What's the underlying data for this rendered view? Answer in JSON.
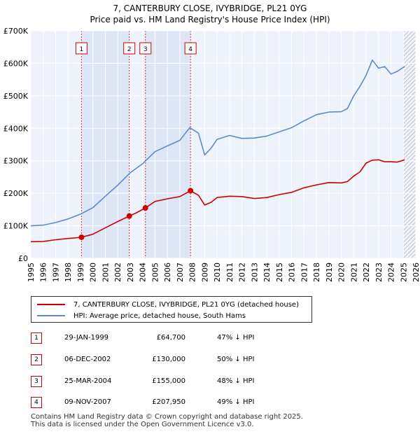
{
  "chart_data": {
    "type": "line",
    "title": "7, CANTERBURY CLOSE, IVYBRIDGE, PL21 0YG",
    "subtitle": "Price paid vs. HM Land Registry's House Price Index (HPI)",
    "xlim": [
      1995,
      2026
    ],
    "ylim": [
      0,
      700000
    ],
    "x_ticks": [
      1995,
      1996,
      1997,
      1998,
      1999,
      2000,
      2001,
      2002,
      2003,
      2004,
      2005,
      2006,
      2007,
      2008,
      2009,
      2010,
      2011,
      2012,
      2013,
      2014,
      2015,
      2016,
      2017,
      2018,
      2019,
      2020,
      2021,
      2022,
      2023,
      2024,
      2025,
      2026
    ],
    "y_ticks": [
      {
        "value": 0,
        "label": "£0"
      },
      {
        "value": 100000,
        "label": "£100K"
      },
      {
        "value": 200000,
        "label": "£200K"
      },
      {
        "value": 300000,
        "label": "£300K"
      },
      {
        "value": 400000,
        "label": "£400K"
      },
      {
        "value": 500000,
        "label": "£500K"
      },
      {
        "value": 600000,
        "label": "£600K"
      },
      {
        "value": 700000,
        "label": "£700K"
      }
    ],
    "grid": true,
    "series": [
      {
        "name": "7, CANTERBURY CLOSE, IVYBRIDGE, PL21 0YG (detached house)",
        "color": "#cc0000",
        "x": [
          1995,
          1996,
          1997,
          1998,
          1999.08,
          2000,
          2001,
          2002,
          2002.93,
          2003.5,
          2004.23,
          2005,
          2006,
          2007,
          2007.86,
          2008.5,
          2009,
          2009.5,
          2010,
          2011,
          2012,
          2013,
          2014,
          2015,
          2016,
          2017,
          2018,
          2019,
          2020,
          2020.5,
          2021,
          2021.5,
          2022,
          2022.5,
          2023,
          2023.5,
          2024,
          2024.5,
          2025.1
        ],
        "y": [
          51000,
          52000,
          57000,
          61000,
          64700,
          74000,
          94000,
          113000,
          130000,
          140000,
          155000,
          175000,
          183000,
          190000,
          207950,
          194000,
          164000,
          172000,
          187000,
          191000,
          190000,
          184000,
          187000,
          196000,
          203000,
          217000,
          226000,
          233000,
          232000,
          236000,
          253000,
          266000,
          293000,
          302000,
          303000,
          297000,
          297000,
          296000,
          303000
        ]
      },
      {
        "name": "HPI: Average price, detached house, South Hams",
        "color": "#5b8cc8",
        "x": [
          1995,
          1996,
          1997,
          1998,
          1999,
          2000,
          2001,
          2002,
          2003,
          2004,
          2005,
          2006,
          2007,
          2007.8,
          2008.5,
          2009,
          2009.5,
          2010,
          2011,
          2012,
          2013,
          2014,
          2015,
          2016,
          2017,
          2018,
          2019,
          2020,
          2020.5,
          2021,
          2021.5,
          2022,
          2022.5,
          2023,
          2023.5,
          2024,
          2024.5,
          2025.1
        ],
        "y": [
          100000,
          102000,
          110000,
          121000,
          136000,
          156000,
          191000,
          225000,
          263000,
          291000,
          328000,
          346000,
          363000,
          402000,
          385000,
          318000,
          338000,
          366000,
          378000,
          369000,
          370000,
          376000,
          389000,
          402000,
          423000,
          442000,
          450000,
          451000,
          461000,
          500000,
          529000,
          563000,
          610000,
          585000,
          590000,
          567000,
          575000,
          590000
        ]
      }
    ],
    "sale_markers": [
      {
        "label": "1",
        "x": 1999.08,
        "y": 64700
      },
      {
        "label": "2",
        "x": 2002.93,
        "y": 130000
      },
      {
        "label": "3",
        "x": 2004.23,
        "y": 155000
      },
      {
        "label": "4",
        "x": 2007.86,
        "y": 207950
      }
    ],
    "shaded_spans": [
      [
        1999.08,
        2002.93
      ],
      [
        2004.23,
        2007.86
      ]
    ],
    "hatched_from": 2025.0
  },
  "legend": {
    "items": [
      {
        "label": "7, CANTERBURY CLOSE, IVYBRIDGE, PL21 0YG (detached house)",
        "color": "#cc0000"
      },
      {
        "label": "HPI: Average price, detached house, South Hams",
        "color": "#5b8cc8"
      }
    ]
  },
  "sales": [
    {
      "num": "1",
      "date": "29-JAN-1999",
      "price": "£64,700",
      "delta": "47% ↓ HPI"
    },
    {
      "num": "2",
      "date": "06-DEC-2002",
      "price": "£130,000",
      "delta": "50% ↓ HPI"
    },
    {
      "num": "3",
      "date": "25-MAR-2004",
      "price": "£155,000",
      "delta": "48% ↓ HPI"
    },
    {
      "num": "4",
      "date": "09-NOV-2007",
      "price": "£207,950",
      "delta": "49% ↓ HPI"
    }
  ],
  "footer": {
    "line1": "Contains HM Land Registry data © Crown copyright and database right 2025.",
    "line2": "This data is licensed under the Open Government Licence v3.0."
  }
}
